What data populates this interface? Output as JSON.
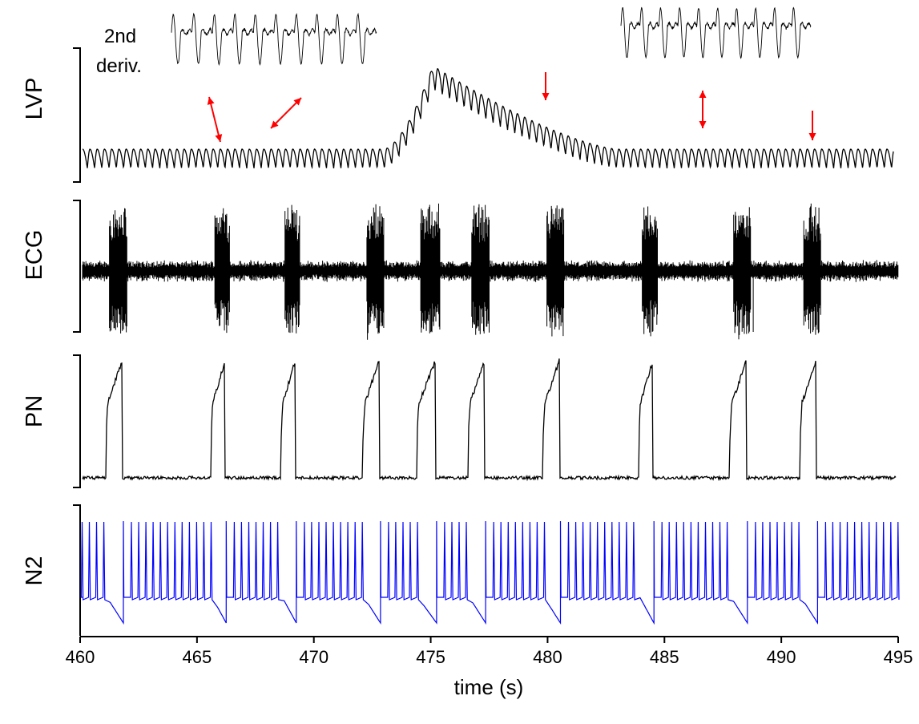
{
  "chart_data": {
    "type": "line",
    "xlabel": "time (s)",
    "xlim": [
      460,
      495
    ],
    "xticks": [
      "460",
      "465",
      "470",
      "475",
      "480",
      "485",
      "490",
      "495"
    ],
    "grid": false,
    "colors": {
      "black_traces": "#000000",
      "N2": "#0000ff",
      "arrows": "#ff0000"
    },
    "traces": [
      {
        "name": "LVP",
        "color": "#000000",
        "style": "oscillation, baseline with a large hump peaking near 475 s"
      },
      {
        "name": "ECG",
        "color": "#000000",
        "style": "noise with periodic high-amplitude bursts"
      },
      {
        "name": "PN",
        "color": "#000000",
        "style": "ramping bursts"
      },
      {
        "name": "N2",
        "color": "#0000ff",
        "style": "tonic spiking interrupted by bursts"
      }
    ],
    "burst_times_s": [
      461.5,
      466.0,
      469.0,
      472.5,
      474.8,
      477.0,
      480.2,
      484.3,
      488.2,
      491.2
    ],
    "burst_end_times_s": [
      461.8,
      466.2,
      469.2,
      472.8,
      475.2,
      477.3,
      480.5,
      484.5,
      488.5,
      491.5
    ],
    "lvp_beat_period_s": 0.31,
    "lvp_hump": {
      "start_s": 473.0,
      "peak_s": 475.1,
      "end_s": 483.0
    },
    "n2_spike_period_s": 0.31,
    "annotations": {
      "inset_label_line1": "2nd",
      "inset_label_line2": "deriv.",
      "arrow_times_s": [
        466.1,
        467.5,
        479.9,
        486.7,
        491.3
      ]
    }
  }
}
